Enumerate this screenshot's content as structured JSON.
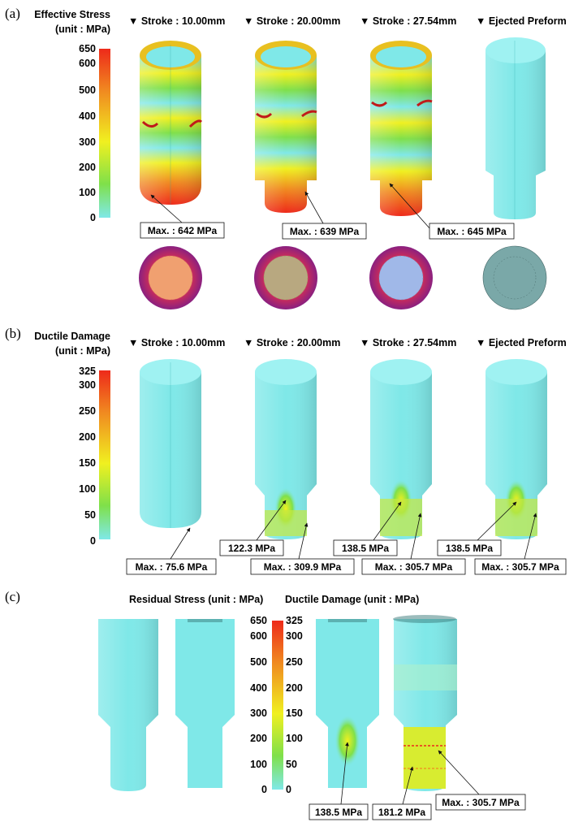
{
  "panels": {
    "a": {
      "label": "(a)",
      "title_line1": "Effective Stress",
      "title_line2": "(unit : MPa)",
      "scale_ticks": [
        "650",
        "600",
        "500",
        "400",
        "300",
        "200",
        "100",
        "0"
      ],
      "columns": [
        "▼ Stroke : 10.00mm",
        "▼ Stroke : 20.00mm",
        "▼ Stroke : 27.54mm",
        "▼ Ejected Preform"
      ],
      "callouts": [
        "Max. : 642 MPa",
        "Max. : 639 MPa",
        "Max. : 645 MPa"
      ]
    },
    "b": {
      "label": "(b)",
      "title_line1": "Ductile Damage",
      "title_line2": "(unit : MPa)",
      "scale_ticks": [
        "325",
        "300",
        "250",
        "200",
        "150",
        "100",
        "50",
        "0"
      ],
      "columns": [
        "▼ Stroke : 10.00mm",
        "▼ Stroke : 20.00mm",
        "▼ Stroke : 27.54mm",
        "▼ Ejected Preform"
      ],
      "callouts": [
        "Max. : 75.6 MPa",
        "122.3 MPa",
        "Max. : 309.9 MPa",
        "138.5 MPa",
        "Max. : 305.7 MPa",
        "138.5 MPa",
        "Max. : 305.7 MPa"
      ]
    },
    "c": {
      "label": "(c)",
      "title_left": "Residual Stress  (unit : MPa)",
      "title_right": "Ductile Damage (unit : MPa)",
      "scale_left_ticks": [
        "650",
        "600",
        "500",
        "400",
        "300",
        "200",
        "100",
        "0"
      ],
      "scale_right_ticks": [
        "325",
        "300",
        "250",
        "200",
        "150",
        "100",
        "50",
        "0"
      ],
      "callouts": [
        "138.5 MPa",
        "181.2 MPa",
        "Max. : 305.7 MPa"
      ]
    }
  },
  "colors": {
    "cyan": "#7fe8e8",
    "green": "#7fe04a",
    "yellow": "#f0f020",
    "orange": "#f08a20",
    "red": "#ee2a1a"
  }
}
